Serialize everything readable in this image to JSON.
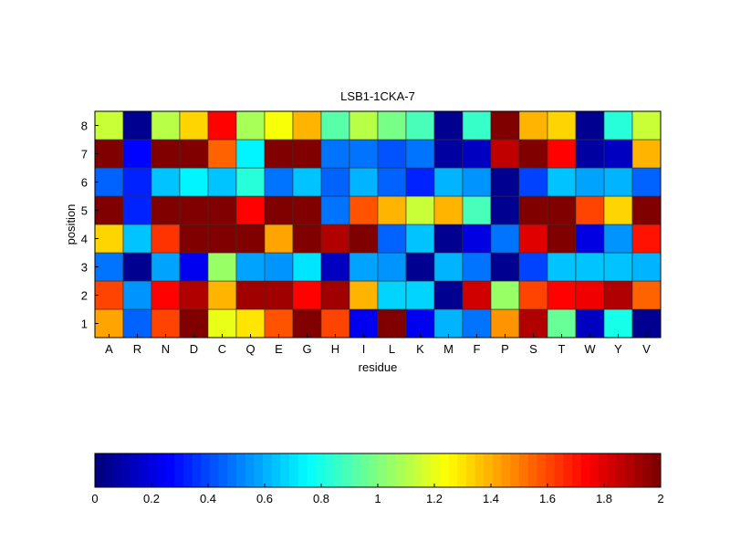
{
  "chart_data": {
    "type": "heatmap",
    "title": "LSB1-1CKA-7",
    "xlabel": "residue",
    "ylabel": "position",
    "x_categories": [
      "A",
      "R",
      "N",
      "D",
      "C",
      "Q",
      "E",
      "G",
      "H",
      "I",
      "L",
      "K",
      "M",
      "F",
      "P",
      "S",
      "T",
      "W",
      "Y",
      "V"
    ],
    "y_categories": [
      "1",
      "2",
      "3",
      "4",
      "5",
      "6",
      "7",
      "8"
    ],
    "colormap": "jet",
    "clim": [
      0,
      2
    ],
    "colorbar": {
      "orientation": "horizontal",
      "placement": "bottom",
      "ticks": [
        "0",
        "0.2",
        "0.4",
        "0.6",
        "0.8",
        "1",
        "1.2",
        "1.4",
        "1.6",
        "1.8",
        "2"
      ]
    },
    "values": [
      [
        1.42,
        0.45,
        1.6,
        2.0,
        1.2,
        1.3,
        1.58,
        2.0,
        1.62,
        0.25,
        2.0,
        0.25,
        0.6,
        0.48,
        1.45,
        1.9,
        0.95,
        0.15,
        0.8,
        0.05
      ],
      [
        1.6,
        0.55,
        1.75,
        1.88,
        1.4,
        1.92,
        1.92,
        1.75,
        1.92,
        1.38,
        0.68,
        0.68,
        0.05,
        1.82,
        1.05,
        1.62,
        1.72,
        1.78,
        1.88,
        1.55
      ],
      [
        0.48,
        0.05,
        0.58,
        0.25,
        1.05,
        0.58,
        0.55,
        0.7,
        0.15,
        0.58,
        0.55,
        0.05,
        0.62,
        0.48,
        0.05,
        0.4,
        0.65,
        0.65,
        0.65,
        0.62
      ],
      [
        1.32,
        0.65,
        1.65,
        2.0,
        2.0,
        2.0,
        1.42,
        2.0,
        1.9,
        2.0,
        0.45,
        0.65,
        0.05,
        0.2,
        0.5,
        1.8,
        2.0,
        0.2,
        0.55,
        1.7
      ],
      [
        2.0,
        0.32,
        2.0,
        2.0,
        2.0,
        1.75,
        2.0,
        2.0,
        0.5,
        1.58,
        1.4,
        1.15,
        1.4,
        0.88,
        0.05,
        2.0,
        2.0,
        1.6,
        1.32,
        2.0
      ],
      [
        0.45,
        0.32,
        0.65,
        0.75,
        0.65,
        0.82,
        0.5,
        0.65,
        0.45,
        0.6,
        0.45,
        0.32,
        0.6,
        0.55,
        0.05,
        0.4,
        0.65,
        0.58,
        0.6,
        0.45
      ],
      [
        2.0,
        0.28,
        2.0,
        2.0,
        1.55,
        0.75,
        2.0,
        2.0,
        0.5,
        0.5,
        0.42,
        0.5,
        0.08,
        0.15,
        1.85,
        2.0,
        1.72,
        0.08,
        0.15,
        1.4
      ],
      [
        1.15,
        0.05,
        1.1,
        1.32,
        1.75,
        1.08,
        1.25,
        1.38,
        0.92,
        1.1,
        0.98,
        0.9,
        0.05,
        0.85,
        2.0,
        1.38,
        1.32,
        0.05,
        0.82,
        1.15
      ]
    ]
  }
}
